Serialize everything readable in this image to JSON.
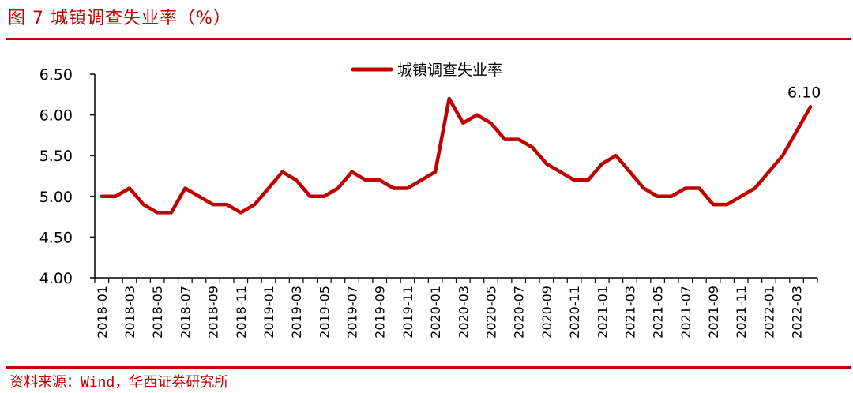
{
  "figure": {
    "title": "图 7  城镇调查失业率（%）",
    "source": "资料来源：Wind，华西证券研究所"
  },
  "colors": {
    "accent": "#c00000",
    "axis": "#000000"
  },
  "chart_data": {
    "type": "line",
    "title": "",
    "xlabel": "",
    "ylabel": "",
    "ylim": [
      4.0,
      6.5
    ],
    "ytick_values": [
      4.0,
      4.5,
      5.0,
      5.5,
      6.0,
      6.5
    ],
    "ytick_labels": [
      "4.00",
      "4.50",
      "5.00",
      "5.50",
      "6.00",
      "6.50"
    ],
    "legend": "top-center",
    "grid": false,
    "x": [
      "2018-01",
      "2018-02",
      "2018-03",
      "2018-04",
      "2018-05",
      "2018-06",
      "2018-07",
      "2018-08",
      "2018-09",
      "2018-10",
      "2018-11",
      "2018-12",
      "2019-01",
      "2019-02",
      "2019-03",
      "2019-04",
      "2019-05",
      "2019-06",
      "2019-07",
      "2019-08",
      "2019-09",
      "2019-10",
      "2019-11",
      "2019-12",
      "2020-01",
      "2020-02",
      "2020-03",
      "2020-04",
      "2020-05",
      "2020-06",
      "2020-07",
      "2020-08",
      "2020-09",
      "2020-10",
      "2020-11",
      "2020-12",
      "2021-01",
      "2021-02",
      "2021-03",
      "2021-04",
      "2021-05",
      "2021-06",
      "2021-07",
      "2021-08",
      "2021-09",
      "2021-10",
      "2021-11",
      "2021-12",
      "2022-01",
      "2022-02",
      "2022-03",
      "2022-04"
    ],
    "xtick_labels": [
      "2018-01",
      "2018-03",
      "2018-05",
      "2018-07",
      "2018-09",
      "2018-11",
      "2019-01",
      "2019-03",
      "2019-05",
      "2019-07",
      "2019-09",
      "2019-11",
      "2020-01",
      "2020-03",
      "2020-05",
      "2020-07",
      "2020-09",
      "2020-11",
      "2021-01",
      "2021-03",
      "2021-05",
      "2021-07",
      "2021-09",
      "2021-11",
      "2022-01",
      "2022-03"
    ],
    "series": [
      {
        "name": "城镇调查失业率",
        "color": "#c00000",
        "values": [
          5.0,
          5.0,
          5.1,
          4.9,
          4.8,
          4.8,
          5.1,
          5.0,
          4.9,
          4.9,
          4.8,
          4.9,
          5.1,
          5.3,
          5.2,
          5.0,
          5.0,
          5.1,
          5.3,
          5.2,
          5.2,
          5.1,
          5.1,
          5.2,
          5.3,
          6.2,
          5.9,
          6.0,
          5.9,
          5.7,
          5.7,
          5.6,
          5.4,
          5.3,
          5.2,
          5.2,
          5.4,
          5.5,
          5.3,
          5.1,
          5.0,
          5.0,
          5.1,
          5.1,
          4.9,
          4.9,
          5.0,
          5.1,
          5.3,
          5.5,
          5.8,
          6.1
        ]
      }
    ],
    "annotations": [
      {
        "index": 51,
        "text": "6.10"
      }
    ]
  }
}
